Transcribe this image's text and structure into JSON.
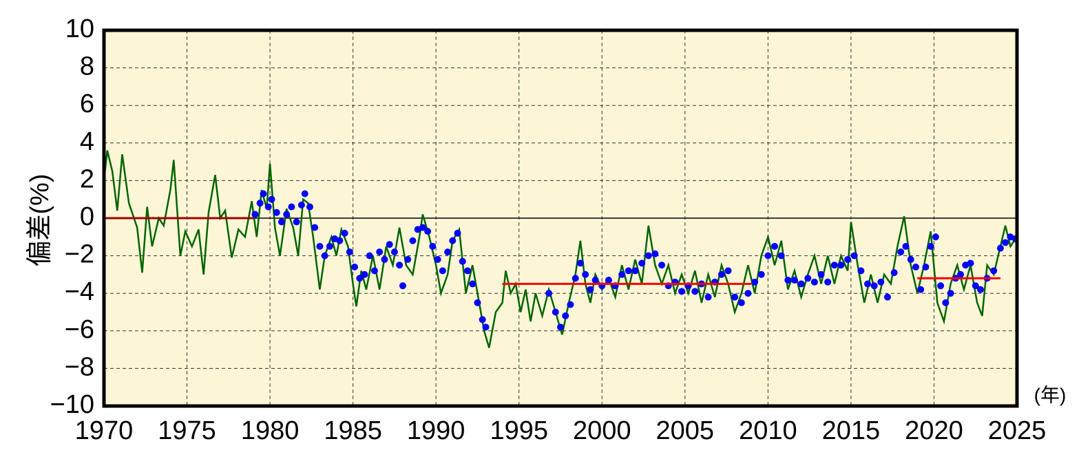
{
  "chart_data": {
    "type": "line",
    "y_label": "偏差(%)",
    "x_unit": "(年)",
    "xlim": [
      1970,
      2025
    ],
    "xticks": [
      1970,
      1975,
      1980,
      1985,
      1990,
      1995,
      2000,
      2005,
      2010,
      2015,
      2020,
      2025
    ],
    "ylim": [
      -10,
      10
    ],
    "yticks": [
      {
        "value": -10,
        "label": "−10"
      },
      {
        "value": -8,
        "label": "−8"
      },
      {
        "value": -6,
        "label": "−6"
      },
      {
        "value": -4,
        "label": "−4"
      },
      {
        "value": -2,
        "label": "−2"
      },
      0,
      2,
      4,
      6,
      8,
      10
    ],
    "grid": true,
    "reference_line": 0,
    "series": [
      {
        "mode": "line",
        "color": "#006400",
        "x": [
          1970.0,
          1970.2,
          1970.5,
          1970.8,
          1971.1,
          1971.5,
          1972.0,
          1972.3,
          1972.6,
          1972.9,
          1973.3,
          1973.6,
          1974.0,
          1974.2,
          1974.6,
          1974.9,
          1975.3,
          1975.7,
          1976.0,
          1976.3,
          1976.7,
          1977.0,
          1977.3,
          1977.7,
          1978.1,
          1978.5,
          1978.9,
          1979.2,
          1979.5,
          1979.8,
          1980.0,
          1980.3,
          1980.6,
          1981.0,
          1981.4,
          1981.7,
          1982.0,
          1982.3,
          1982.6,
          1983.0,
          1983.3,
          1983.7,
          1984.0,
          1984.3,
          1984.7,
          1985.0,
          1985.2,
          1985.5,
          1985.8,
          1986.2,
          1986.6,
          1987.0,
          1987.4,
          1987.8,
          1988.2,
          1988.6,
          1989.0,
          1989.2,
          1989.6,
          1990.0,
          1990.3,
          1990.7,
          1991.0,
          1991.4,
          1991.8,
          1992.2,
          1992.6,
          1992.9,
          1993.2,
          1993.6,
          1994.0,
          1994.2,
          1994.5,
          1994.8,
          1995.1,
          1995.4,
          1995.7,
          1996.0,
          1996.4,
          1996.8,
          1997.2,
          1997.6,
          1998.0,
          1998.4,
          1998.7,
          1999.0,
          1999.3,
          1999.6,
          2000.0,
          2000.4,
          2000.8,
          2001.2,
          2001.6,
          2002.0,
          2002.4,
          2002.8,
          2003.2,
          2003.6,
          2004.0,
          2004.4,
          2004.8,
          2005.2,
          2005.6,
          2006.0,
          2006.4,
          2006.8,
          2007.2,
          2007.6,
          2008.0,
          2008.4,
          2008.8,
          2009.2,
          2009.6,
          2010.0,
          2010.4,
          2010.8,
          2011.2,
          2011.6,
          2012.0,
          2012.4,
          2012.8,
          2013.2,
          2013.6,
          2014.0,
          2014.4,
          2014.8,
          2015.0,
          2015.4,
          2015.8,
          2016.2,
          2016.6,
          2017.0,
          2017.4,
          2017.8,
          2018.2,
          2018.6,
          2019.0,
          2019.4,
          2019.8,
          2020.2,
          2020.6,
          2021.0,
          2021.4,
          2021.8,
          2022.2,
          2022.6,
          2022.9,
          2023.2,
          2023.6,
          2024.0,
          2024.3,
          2024.6,
          2025.0
        ],
        "values": [
          2.0,
          3.6,
          2.5,
          0.4,
          3.4,
          0.8,
          -0.5,
          -2.9,
          0.6,
          -1.5,
          0.0,
          -0.4,
          1.5,
          3.1,
          -2.0,
          -0.7,
          -1.5,
          -0.6,
          -3.0,
          0.3,
          2.3,
          0.0,
          0.4,
          -2.1,
          -0.6,
          -1.0,
          0.9,
          -1.0,
          1.5,
          0.5,
          2.9,
          -0.5,
          -2.0,
          0.5,
          -0.5,
          -2.0,
          1.0,
          0.8,
          -1.0,
          -3.8,
          -2.0,
          -1.0,
          -2.0,
          -0.6,
          -1.5,
          -3.5,
          -4.7,
          -2.8,
          -3.8,
          -2.0,
          -3.8,
          -1.5,
          -2.5,
          -0.5,
          -2.5,
          -3.0,
          -1.0,
          0.2,
          -1.0,
          -2.5,
          -4.0,
          -3.0,
          -1.2,
          -0.6,
          -4.0,
          -2.5,
          -4.5,
          -6.0,
          -6.9,
          -5.0,
          -4.5,
          -2.8,
          -4.0,
          -3.5,
          -5.0,
          -3.8,
          -5.5,
          -4.0,
          -5.2,
          -3.8,
          -5.0,
          -6.2,
          -4.5,
          -3.0,
          -1.2,
          -3.5,
          -4.5,
          -3.0,
          -3.8,
          -3.2,
          -4.2,
          -2.5,
          -3.8,
          -2.2,
          -3.5,
          -0.4,
          -2.5,
          -3.5,
          -2.5,
          -4.0,
          -3.0,
          -4.0,
          -2.8,
          -4.5,
          -3.0,
          -4.2,
          -2.5,
          -3.5,
          -5.0,
          -4.0,
          -2.5,
          -4.0,
          -2.0,
          -1.0,
          -2.5,
          -1.2,
          -3.8,
          -2.8,
          -4.2,
          -3.0,
          -2.0,
          -3.5,
          -2.0,
          -3.5,
          -2.0,
          -2.8,
          -0.2,
          -2.5,
          -4.5,
          -3.0,
          -4.5,
          -3.0,
          -3.5,
          -1.5,
          0.1,
          -2.5,
          -4.0,
          -2.5,
          -0.7,
          -4.5,
          -5.5,
          -3.5,
          -2.5,
          -3.8,
          -2.5,
          -4.5,
          -5.2,
          -2.5,
          -3.0,
          -1.5,
          -0.4,
          -1.5,
          -1.0
        ]
      },
      {
        "mode": "markers",
        "color": "#0000ff",
        "x": [
          1979.1,
          1979.4,
          1979.6,
          1979.9,
          1980.1,
          1980.4,
          1980.7,
          1981.0,
          1981.3,
          1981.6,
          1981.9,
          1982.1,
          1982.4,
          1982.7,
          1983.0,
          1983.3,
          1983.6,
          1983.9,
          1984.2,
          1984.5,
          1984.8,
          1985.1,
          1985.4,
          1985.7,
          1986.0,
          1986.3,
          1986.6,
          1986.9,
          1987.2,
          1987.5,
          1987.8,
          1988.0,
          1988.3,
          1988.6,
          1988.9,
          1989.2,
          1989.5,
          1989.8,
          1990.1,
          1990.4,
          1990.7,
          1991.0,
          1991.3,
          1991.6,
          1991.9,
          1992.2,
          1992.5,
          1992.8,
          1993.0,
          1996.8,
          1997.2,
          1997.5,
          1997.8,
          1998.1,
          1998.4,
          1998.7,
          1999.0,
          1999.3,
          1999.6,
          2000.0,
          2000.4,
          2000.8,
          2001.2,
          2001.6,
          2002.0,
          2002.4,
          2002.8,
          2003.2,
          2003.6,
          2004.0,
          2004.4,
          2004.8,
          2005.2,
          2005.6,
          2006.0,
          2006.4,
          2006.8,
          2007.2,
          2007.6,
          2008.0,
          2008.4,
          2008.8,
          2009.2,
          2009.6,
          2010.0,
          2010.4,
          2010.8,
          2011.2,
          2011.6,
          2012.0,
          2012.4,
          2012.8,
          2013.2,
          2013.6,
          2014.0,
          2014.4,
          2014.8,
          2015.2,
          2015.6,
          2016.0,
          2016.4,
          2016.8,
          2017.2,
          2017.6,
          2018.0,
          2018.3,
          2018.6,
          2018.9,
          2019.2,
          2019.5,
          2019.8,
          2020.1,
          2020.4,
          2020.7,
          2021.0,
          2021.3,
          2021.6,
          2021.9,
          2022.2,
          2022.5,
          2022.8,
          2023.2,
          2023.6,
          2024.0,
          2024.3,
          2024.6,
          2024.9
        ],
        "values": [
          0.2,
          0.8,
          1.3,
          0.6,
          1.0,
          0.3,
          -0.2,
          0.2,
          0.6,
          -0.2,
          0.7,
          1.3,
          0.6,
          -0.5,
          -1.5,
          -2.0,
          -1.5,
          -1.1,
          -1.2,
          -0.8,
          -1.8,
          -2.6,
          -3.2,
          -3.0,
          -2.0,
          -2.8,
          -1.8,
          -2.2,
          -1.4,
          -1.8,
          -2.5,
          -3.6,
          -2.2,
          -1.2,
          -0.6,
          -0.5,
          -0.7,
          -1.5,
          -2.2,
          -2.8,
          -1.8,
          -1.2,
          -0.8,
          -2.3,
          -2.8,
          -3.5,
          -4.5,
          -5.4,
          -5.8,
          -4.0,
          -5.0,
          -5.8,
          -5.2,
          -4.6,
          -3.2,
          -2.4,
          -3.0,
          -3.8,
          -3.3,
          -3.6,
          -3.3,
          -3.6,
          -3.0,
          -2.8,
          -2.8,
          -2.4,
          -2.0,
          -1.9,
          -2.5,
          -3.6,
          -3.4,
          -3.9,
          -3.6,
          -3.9,
          -3.5,
          -4.2,
          -3.4,
          -3.0,
          -2.8,
          -4.2,
          -4.5,
          -4.0,
          -3.4,
          -3.0,
          -2.0,
          -1.5,
          -2.0,
          -3.3,
          -3.3,
          -3.5,
          -3.2,
          -3.4,
          -3.0,
          -3.4,
          -2.5,
          -2.5,
          -2.2,
          -2.0,
          -2.8,
          -3.5,
          -3.6,
          -3.4,
          -4.2,
          -2.9,
          -1.8,
          -1.5,
          -2.2,
          -2.6,
          -3.8,
          -2.6,
          -1.5,
          -1.0,
          -3.6,
          -4.5,
          -4.0,
          -3.2,
          -3.0,
          -2.5,
          -2.4,
          -3.6,
          -3.8,
          -3.2,
          -2.8,
          -1.6,
          -1.3,
          -1.0,
          -1.1
        ]
      },
      {
        "mode": "line",
        "color": "#a00000",
        "x": [
          1970,
          1979
        ],
        "values": [
          0,
          0
        ]
      },
      {
        "mode": "line",
        "color": "#ff0000",
        "x": [
          1994,
          2009,
          2014,
          2019,
          2024
        ],
        "values": [
          -3.5,
          -3.5,
          null,
          -3.2,
          -3.2
        ]
      }
    ]
  }
}
